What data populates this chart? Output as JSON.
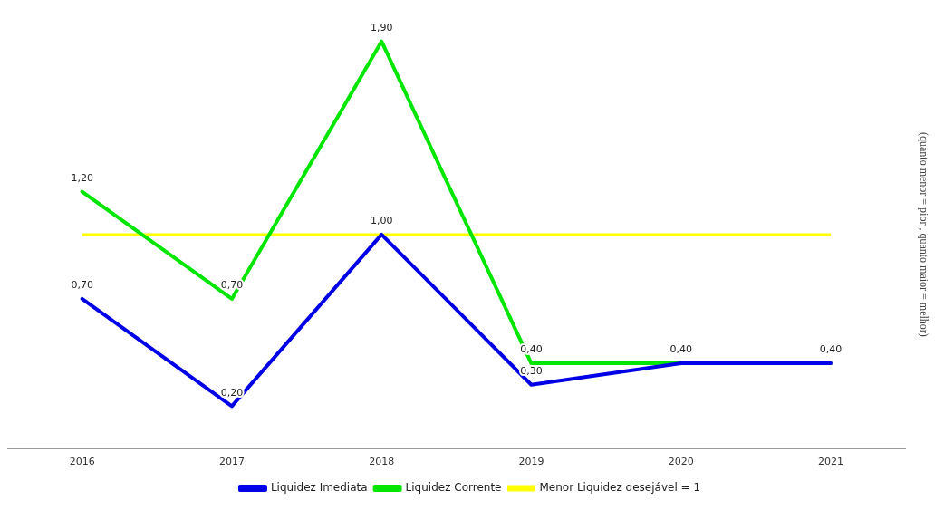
{
  "chart_data": {
    "type": "line",
    "ylabel": "(quanto menor = pior , quanto maior = melhor)",
    "categories": [
      "2016",
      "2017",
      "2018",
      "2019",
      "2020",
      "2021"
    ],
    "series": [
      {
        "name": "Liquidez Imediata",
        "color": "#0000e6",
        "values": [
          0.7,
          0.2,
          1.0,
          0.3,
          0.4,
          0.4
        ],
        "value_labels": [
          "0,70",
          "0,20",
          "1,00",
          "0,30",
          "0,40",
          "0,40"
        ]
      },
      {
        "name": "Liquidez Corrente",
        "color": "#00e600",
        "values": [
          1.2,
          0.7,
          1.9,
          0.4,
          0.4,
          0.4
        ],
        "value_labels": [
          "1,20",
          "0,70",
          "1,90",
          "0,40",
          null,
          null
        ]
      }
    ],
    "ref_lines": [
      {
        "axis": "y",
        "value": 1,
        "label": "Menor Liquidez desejável = 1",
        "color": "#ffff00"
      }
    ],
    "tick_labels": "x",
    "grid": false,
    "legend": "bottom",
    "marker": "none",
    "line_style": "solid"
  }
}
